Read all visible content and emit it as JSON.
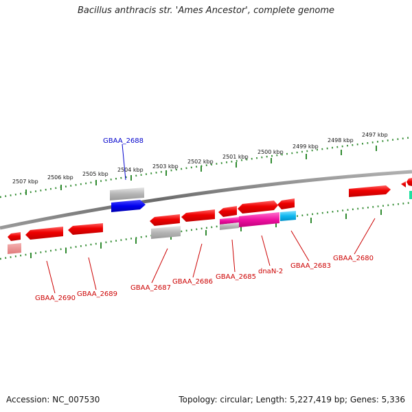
{
  "title": "Bacillus anthracis str. 'Ames Ancestor', complete genome",
  "footer": {
    "accession": "Accession: NC_007530",
    "topology": "Topology: circular; Length: 5,227,419 bp; Genes: 5,336"
  },
  "colors": {
    "backbone": "#808080",
    "ticks": "#2f8a2f",
    "gene_red": "#ee0000",
    "gene_grey": "#b8b8b8",
    "gene_blue": "#0000ee",
    "gene_magenta": "#ee10a0",
    "gene_cyan": "#10b8f0",
    "label_red": "#cc0000",
    "label_blue": "#0000cc"
  },
  "kbp_labels": [
    "2507 kbp",
    "2506 kbp",
    "2505 kbp",
    "2504 kbp",
    "2503 kbp",
    "2502 kbp",
    "2501 kbp",
    "2500 kbp",
    "2499 kbp",
    "2498 kbp",
    "2497 kbp"
  ],
  "gene_labels": [
    "GBAA_2688",
    "GBAA_2690",
    "GBAA_2689",
    "GBAA_2687",
    "GBAA_2686",
    "GBAA_2685",
    "dnaN-2",
    "GBAA_2683",
    "GBAA_2680"
  ]
}
